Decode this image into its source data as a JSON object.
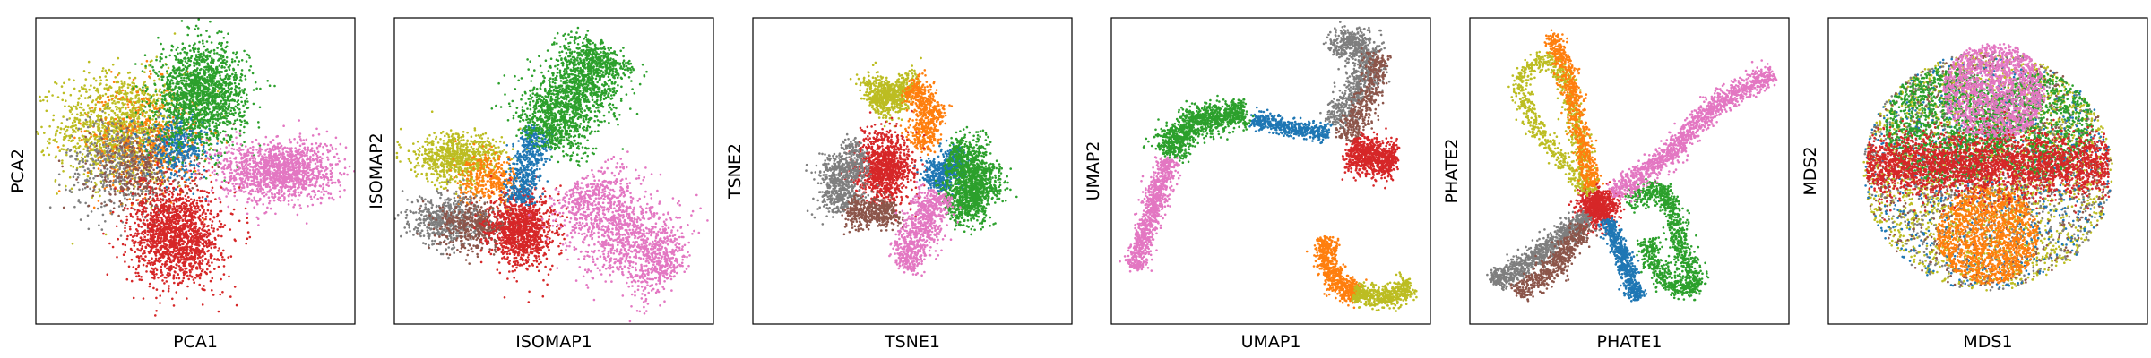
{
  "colors": {
    "blue": "#1f77b4",
    "orange": "#ff7f0e",
    "green": "#2ca02c",
    "red": "#d62728",
    "brown": "#8c564b",
    "pink": "#e377c2",
    "gray": "#7f7f7f",
    "olive": "#bcbd22"
  },
  "chart_data": [
    {
      "type": "scatter",
      "title": "",
      "xlabel": "PCA1",
      "ylabel": "PCA2",
      "xlim": [
        0,
        100
      ],
      "ylim": [
        0,
        100
      ],
      "ticks": "none",
      "grid": false,
      "legend": "none",
      "clusters": [
        {
          "color": "olive",
          "shape": "blob",
          "x": 27,
          "y": 64,
          "sx": 10,
          "sy": 9,
          "n": 1300
        },
        {
          "color": "orange",
          "shape": "blob",
          "x": 34,
          "y": 60,
          "sx": 9,
          "sy": 9,
          "n": 500
        },
        {
          "color": "gray",
          "shape": "blob",
          "x": 26,
          "y": 52,
          "sx": 8,
          "sy": 8,
          "n": 450
        },
        {
          "color": "brown",
          "shape": "blob",
          "x": 33,
          "y": 50,
          "sx": 8,
          "sy": 7,
          "n": 350
        },
        {
          "color": "blue",
          "shape": "blob",
          "x": 45,
          "y": 58,
          "sx": 5,
          "sy": 5,
          "n": 350
        },
        {
          "color": "green",
          "shape": "blob",
          "x": 52,
          "y": 75,
          "sx": 7,
          "sy": 8,
          "n": 1600
        },
        {
          "color": "pink",
          "shape": "blob",
          "x": 76,
          "y": 50,
          "sx": 9,
          "sy": 5,
          "n": 1400
        },
        {
          "color": "red",
          "shape": "blob",
          "x": 44,
          "y": 29,
          "sx": 7,
          "sy": 8,
          "n": 1600
        }
      ]
    },
    {
      "type": "scatter",
      "title": "",
      "xlabel": "ISOMAP1",
      "ylabel": "ISOMAP2",
      "xlim": [
        0,
        100
      ],
      "ylim": [
        0,
        100
      ],
      "ticks": "none",
      "grid": false,
      "legend": "none",
      "clusters": [
        {
          "color": "olive",
          "shape": "blob",
          "x": 20,
          "y": 54,
          "sx": 7,
          "sy": 4,
          "n": 800
        },
        {
          "color": "orange",
          "shape": "blob",
          "x": 30,
          "y": 47,
          "sx": 5,
          "sy": 4,
          "n": 350
        },
        {
          "color": "gray",
          "shape": "blob",
          "x": 17,
          "y": 34,
          "sx": 6,
          "sy": 4,
          "n": 600
        },
        {
          "color": "brown",
          "shape": "blob",
          "x": 26,
          "y": 32,
          "sx": 6,
          "sy": 4,
          "n": 450
        },
        {
          "color": "red",
          "shape": "blob",
          "x": 40,
          "y": 31,
          "sx": 5,
          "sy": 6,
          "n": 1100
        },
        {
          "color": "blue",
          "shape": "path",
          "pts": [
            [
              39,
              40
            ],
            [
              42,
              52
            ],
            [
              45,
              64
            ]
          ],
          "w": 2.5,
          "n": 500
        },
        {
          "color": "green",
          "shape": "path",
          "pts": [
            [
              46,
              60
            ],
            [
              54,
              73
            ],
            [
              62,
              83
            ],
            [
              66,
              90
            ]
          ],
          "w": 6,
          "n": 1800
        },
        {
          "color": "pink",
          "shape": "path",
          "pts": [
            [
              57,
              45
            ],
            [
              68,
              33
            ],
            [
              78,
              23
            ],
            [
              88,
              17
            ]
          ],
          "w": 7,
          "n": 1500
        }
      ]
    },
    {
      "type": "scatter",
      "title": "",
      "xlabel": "TSNE1",
      "ylabel": "TSNE2",
      "xlim": [
        0,
        100
      ],
      "ylim": [
        0,
        100
      ],
      "ticks": "none",
      "grid": false,
      "legend": "none",
      "clusters": [
        {
          "color": "olive",
          "shape": "path",
          "pts": [
            [
              37,
              72
            ],
            [
              44,
              77
            ],
            [
              49,
              74
            ]
          ],
          "w": 3.5,
          "n": 700
        },
        {
          "color": "orange",
          "shape": "path",
          "pts": [
            [
              49,
              78
            ],
            [
              55,
              73
            ],
            [
              55,
              63
            ],
            [
              51,
              58
            ]
          ],
          "w": 2.5,
          "n": 600
        },
        {
          "color": "red",
          "shape": "blob",
          "x": 41,
          "y": 51,
          "sx": 4.5,
          "sy": 5.5,
          "n": 1100
        },
        {
          "color": "blue",
          "shape": "path",
          "pts": [
            [
              57,
              45
            ],
            [
              60,
              52
            ],
            [
              66,
              53
            ]
          ],
          "w": 2.5,
          "n": 500
        },
        {
          "color": "green",
          "shape": "path",
          "pts": [
            [
              62,
              56
            ],
            [
              71,
              52
            ],
            [
              71,
              41
            ],
            [
              62,
              37
            ]
          ],
          "w": 4,
          "n": 1300
        },
        {
          "color": "gray",
          "shape": "path",
          "pts": [
            [
              30,
              38
            ],
            [
              25,
              45
            ],
            [
              29,
              53
            ],
            [
              35,
              55
            ]
          ],
          "w": 3.5,
          "n": 700
        },
        {
          "color": "brown",
          "shape": "path",
          "pts": [
            [
              30,
              38
            ],
            [
              38,
              35
            ],
            [
              45,
              38
            ]
          ],
          "w": 2.5,
          "n": 450
        },
        {
          "color": "pink",
          "shape": "path",
          "pts": [
            [
              58,
              43
            ],
            [
              54,
              33
            ],
            [
              50,
              24
            ],
            [
              47,
              19
            ]
          ],
          "w": 3,
          "n": 800
        }
      ]
    },
    {
      "type": "scatter",
      "title": "",
      "xlabel": "UMAP1",
      "ylabel": "UMAP2",
      "xlim": [
        0,
        100
      ],
      "ylim": [
        0,
        100
      ],
      "ticks": "none",
      "grid": false,
      "legend": "none",
      "clusters": [
        {
          "color": "gray",
          "shape": "path",
          "pts": [
            [
              70,
              88
            ],
            [
              76,
              95
            ],
            [
              82,
              87
            ],
            [
              76,
              75
            ],
            [
              70,
              65
            ]
          ],
          "w": 2.5,
          "n": 900
        },
        {
          "color": "brown",
          "shape": "path",
          "pts": [
            [
              84,
              88
            ],
            [
              80,
              72
            ],
            [
              73,
              60
            ]
          ],
          "w": 2,
          "n": 450
        },
        {
          "color": "red",
          "shape": "path",
          "pts": [
            [
              75,
              57
            ],
            [
              82,
              54
            ],
            [
              89,
              53
            ]
          ],
          "w": 3,
          "n": 800
        },
        {
          "color": "blue",
          "shape": "path",
          "pts": [
            [
              44,
              67
            ],
            [
              57,
              64
            ],
            [
              68,
              62
            ]
          ],
          "w": 1.3,
          "n": 500
        },
        {
          "color": "green",
          "shape": "path",
          "pts": [
            [
              18,
              55
            ],
            [
              22,
              64
            ],
            [
              30,
              67
            ],
            [
              42,
              69
            ]
          ],
          "w": 2.5,
          "n": 1100
        },
        {
          "color": "pink",
          "shape": "path",
          "pts": [
            [
              18,
              54
            ],
            [
              14,
              40
            ],
            [
              10,
              28
            ],
            [
              7,
              18
            ]
          ],
          "w": 1.8,
          "n": 850
        },
        {
          "color": "orange",
          "shape": "path",
          "pts": [
            [
              67,
              28
            ],
            [
              68,
              18
            ],
            [
              72,
              12
            ],
            [
              78,
              10
            ]
          ],
          "w": 1.8,
          "n": 650
        },
        {
          "color": "olive",
          "shape": "path",
          "pts": [
            [
              76,
              10
            ],
            [
              86,
              8
            ],
            [
              94,
              13
            ]
          ],
          "w": 1.8,
          "n": 550
        }
      ]
    },
    {
      "type": "scatter",
      "title": "",
      "xlabel": "PHATE1",
      "ylabel": "PHATE2",
      "xlim": [
        0,
        100
      ],
      "ylim": [
        0,
        100
      ],
      "ticks": "none",
      "grid": false,
      "legend": "none",
      "clusters": [
        {
          "color": "red",
          "shape": "blob",
          "x": 40,
          "y": 38,
          "sx": 3,
          "sy": 3,
          "n": 700
        },
        {
          "color": "olive",
          "shape": "path",
          "pts": [
            [
              37,
              43
            ],
            [
              20,
              65
            ],
            [
              15,
              80
            ],
            [
              23,
              87
            ],
            [
              29,
              83
            ],
            [
              32,
              70
            ],
            [
              38,
              43
            ]
          ],
          "w": 1.5,
          "n": 900
        },
        {
          "color": "orange",
          "shape": "path",
          "pts": [
            [
              25,
              95
            ],
            [
              30,
              85
            ],
            [
              33,
              70
            ],
            [
              38,
              45
            ]
          ],
          "w": 1.5,
          "n": 700
        },
        {
          "color": "gray",
          "shape": "path",
          "pts": [
            [
              37,
              35
            ],
            [
              28,
              28
            ],
            [
              18,
              20
            ],
            [
              7,
              14
            ]
          ],
          "w": 1.8,
          "n": 900
        },
        {
          "color": "brown",
          "shape": "path",
          "pts": [
            [
              36,
              32
            ],
            [
              25,
              17
            ],
            [
              15,
              10
            ]
          ],
          "w": 1.8,
          "n": 550
        },
        {
          "color": "blue",
          "shape": "path",
          "pts": [
            [
              43,
              34
            ],
            [
              47,
              25
            ],
            [
              50,
              15
            ],
            [
              53,
              8
            ]
          ],
          "w": 1.3,
          "n": 600
        },
        {
          "color": "green",
          "shape": "path",
          "pts": [
            [
              50,
              40
            ],
            [
              60,
              45
            ],
            [
              64,
              36
            ],
            [
              66,
              25
            ],
            [
              72,
              12
            ],
            [
              62,
              12
            ],
            [
              58,
              20
            ],
            [
              55,
              27
            ]
          ],
          "w": 1.7,
          "n": 1100
        },
        {
          "color": "pink",
          "shape": "path",
          "pts": [
            [
              45,
              42
            ],
            [
              62,
              55
            ],
            [
              77,
              72
            ],
            [
              95,
              82
            ]
          ],
          "w": 1.8,
          "n": 1300
        }
      ]
    },
    {
      "type": "scatter",
      "title": "",
      "xlabel": "MDS1",
      "ylabel": "MDS2",
      "xlim": [
        0,
        100
      ],
      "ylim": [
        0,
        100
      ],
      "ticks": "none",
      "grid": false,
      "legend": "none",
      "clusters": [
        {
          "color": "olive",
          "shape": "disc",
          "x": 50,
          "y": 50,
          "r": 39,
          "n": 2200
        },
        {
          "color": "gray",
          "shape": "disc",
          "x": 50,
          "y": 50,
          "r": 39,
          "n": 900
        },
        {
          "color": "brown",
          "shape": "disc",
          "x": 50,
          "y": 50,
          "r": 39,
          "n": 700
        },
        {
          "color": "blue",
          "shape": "disc",
          "x": 50,
          "y": 50,
          "r": 39,
          "n": 700
        },
        {
          "color": "green",
          "shape": "disc",
          "x": 37,
          "y": 65,
          "r": 19,
          "n": 1200
        },
        {
          "color": "green",
          "shape": "disc",
          "x": 66,
          "y": 65,
          "r": 17,
          "n": 800
        },
        {
          "color": "pink",
          "shape": "disc",
          "x": 52,
          "y": 76,
          "r": 16,
          "n": 1500
        },
        {
          "color": "orange",
          "shape": "disc",
          "x": 50,
          "y": 29,
          "r": 16,
          "n": 1500
        },
        {
          "color": "red",
          "shape": "band",
          "x": 50,
          "y": 52,
          "rx": 38,
          "sy": 5,
          "n": 2600
        }
      ]
    }
  ]
}
